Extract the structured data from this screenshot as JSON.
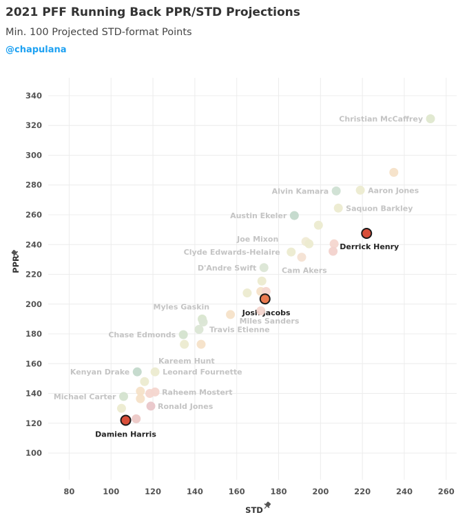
{
  "header": {
    "title": "2021 PFF Running Back PPR/STD Projections",
    "subtitle": "Min. 100 Projected STD-format Points",
    "handle": "@chapulana"
  },
  "chart_data": {
    "type": "scatter",
    "title": "2021 PFF Running Back PPR/STD Projections",
    "subtitle": "Min. 100 Projected STD-format Points",
    "xlabel": "STD",
    "ylabel": "PPR",
    "xlim": [
      70,
      265
    ],
    "ylim": [
      82,
      352
    ],
    "xticks": [
      80,
      100,
      120,
      140,
      160,
      180,
      200,
      220,
      240,
      260
    ],
    "yticks": [
      100,
      120,
      140,
      160,
      180,
      200,
      220,
      240,
      260,
      280,
      300,
      320,
      340
    ],
    "grid": true,
    "highlight_color": "#d94f3a",
    "points": [
      {
        "x": 252.5,
        "y": 324.5,
        "color": "#dfe8cf",
        "label": "Christian McCaffrey",
        "highlight": false
      },
      {
        "x": 235.0,
        "y": 288.5,
        "color": "#f6e1c8",
        "label": "",
        "highlight": false
      },
      {
        "x": 219.0,
        "y": 276.5,
        "color": "#ecebd0",
        "label": "Aaron Jones",
        "highlight": false
      },
      {
        "x": 207.5,
        "y": 276.0,
        "color": "#cfe0d3",
        "label": "Alvin Kamara",
        "highlight": false
      },
      {
        "x": 208.5,
        "y": 264.5,
        "color": "#ecebd0",
        "label": "Saquon Barkley",
        "highlight": false
      },
      {
        "x": 187.5,
        "y": 259.5,
        "color": "#c3d9cb",
        "label": "Austin Ekeler",
        "highlight": false
      },
      {
        "x": 199.0,
        "y": 253.0,
        "color": "#ecebd0",
        "label": "Joe Mixon",
        "highlight": false
      },
      {
        "x": 222.0,
        "y": 247.5,
        "color": "#d94f3a",
        "label": "Derrick Henry",
        "highlight": true
      },
      {
        "x": 193.0,
        "y": 242.0,
        "color": "#f0ebd5",
        "label": "",
        "highlight": false
      },
      {
        "x": 194.5,
        "y": 240.5,
        "color": "#ecebd0",
        "label": "",
        "highlight": false
      },
      {
        "x": 206.5,
        "y": 240.5,
        "color": "#f4d6cf",
        "label": "",
        "highlight": false
      },
      {
        "x": 206.0,
        "y": 235.5,
        "color": "#f2d2cc",
        "label": "",
        "highlight": false
      },
      {
        "x": 186.0,
        "y": 235.0,
        "color": "#ecebd0",
        "label": "Clyde Edwards-Helaire",
        "highlight": false
      },
      {
        "x": 191.0,
        "y": 231.5,
        "color": "#f4e1d3",
        "label": "Cam Akers",
        "highlight": false
      },
      {
        "x": 173.0,
        "y": 224.5,
        "color": "#dbe6d5",
        "label": "D'Andre Swift",
        "highlight": false
      },
      {
        "x": 172.0,
        "y": 215.5,
        "color": "#ecebd0",
        "label": "",
        "highlight": false
      },
      {
        "x": 171.5,
        "y": 208.5,
        "color": "#f6e1c8",
        "label": "",
        "highlight": false
      },
      {
        "x": 174.0,
        "y": 208.5,
        "color": "#f4d6cf",
        "label": "",
        "highlight": false
      },
      {
        "x": 165.0,
        "y": 207.5,
        "color": "#ecebd0",
        "label": "",
        "highlight": false
      },
      {
        "x": 173.5,
        "y": 203.5,
        "color": "#ea7a4f",
        "label": "Josh Jacobs",
        "highlight": true
      },
      {
        "x": 171.5,
        "y": 195.5,
        "color": "#f4d6cf",
        "label": "",
        "highlight": false
      },
      {
        "x": 157.0,
        "y": 193.0,
        "color": "#f6e1c8",
        "label": "Miles Sanders",
        "highlight": false
      },
      {
        "x": 143.5,
        "y": 190.0,
        "color": "#d9e6cf",
        "label": "Myles Gaskin",
        "highlight": false
      },
      {
        "x": 144.0,
        "y": 188.0,
        "color": "#dbe6d5",
        "label": "",
        "highlight": false
      },
      {
        "x": 142.0,
        "y": 183.0,
        "color": "#dbe6d5",
        "label": "Travis Etienne",
        "highlight": false
      },
      {
        "x": 134.5,
        "y": 179.5,
        "color": "#d4e3cf",
        "label": "Chase Edmonds",
        "highlight": false
      },
      {
        "x": 135.0,
        "y": 173.0,
        "color": "#ecebd0",
        "label": "",
        "highlight": false
      },
      {
        "x": 143.0,
        "y": 173.0,
        "color": "#f6e1c8",
        "label": "Kareem Hunt",
        "highlight": false
      },
      {
        "x": 112.5,
        "y": 154.5,
        "color": "#c3d9cb",
        "label": "Kenyan Drake",
        "highlight": false
      },
      {
        "x": 121.0,
        "y": 154.5,
        "color": "#ecebd0",
        "label": "Leonard Fournette",
        "highlight": false
      },
      {
        "x": 116.0,
        "y": 148.0,
        "color": "#ecebd0",
        "label": "",
        "highlight": false
      },
      {
        "x": 114.0,
        "y": 141.5,
        "color": "#f6e1c8",
        "label": "",
        "highlight": false
      },
      {
        "x": 118.5,
        "y": 140.0,
        "color": "#f4d6cf",
        "label": "",
        "highlight": false
      },
      {
        "x": 121.0,
        "y": 141.0,
        "color": "#f4d6cf",
        "label": "Raheem Mostert",
        "highlight": false
      },
      {
        "x": 106.0,
        "y": 138.0,
        "color": "#d4e3cf",
        "label": "Michael Carter",
        "highlight": false
      },
      {
        "x": 114.0,
        "y": 136.5,
        "color": "#f6e1c8",
        "label": "",
        "highlight": false
      },
      {
        "x": 119.0,
        "y": 131.5,
        "color": "#e9c6c9",
        "label": "Ronald Jones",
        "highlight": false
      },
      {
        "x": 105.0,
        "y": 130.0,
        "color": "#ecebd0",
        "label": "",
        "highlight": false
      },
      {
        "x": 112.0,
        "y": 123.0,
        "color": "#ecc8c6",
        "label": "",
        "highlight": false
      },
      {
        "x": 107.0,
        "y": 122.0,
        "color": "#d94f3a",
        "label": "Damien Harris",
        "highlight": true
      }
    ]
  }
}
